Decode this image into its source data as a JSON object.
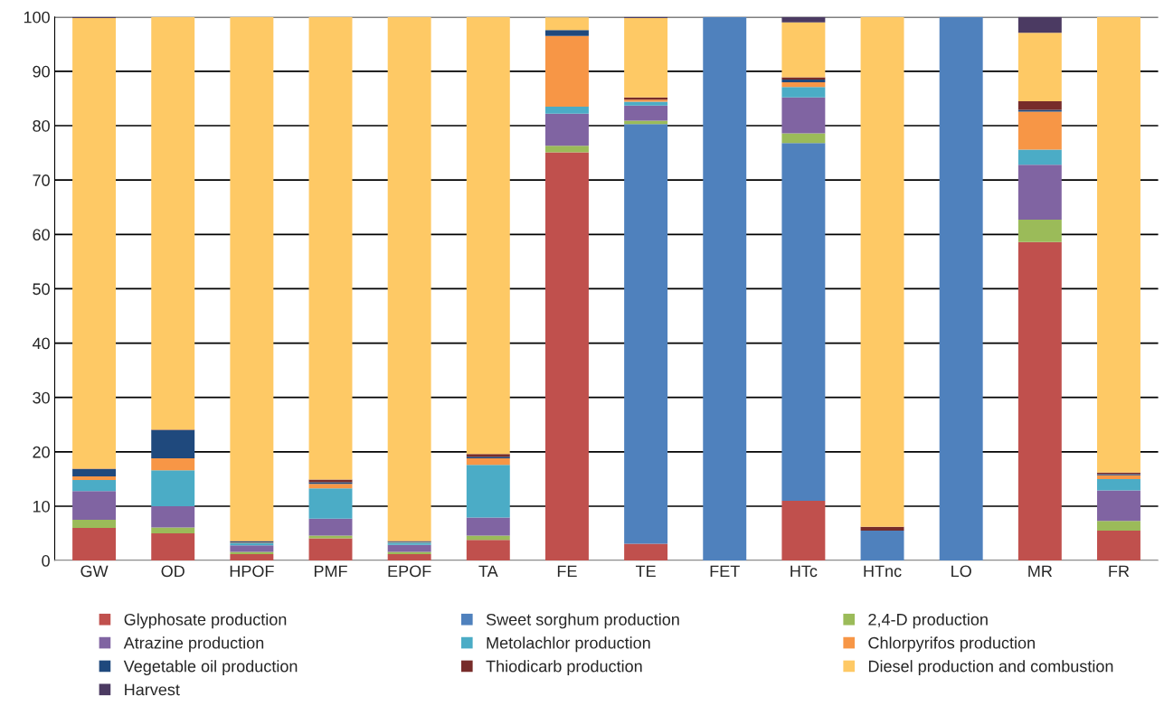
{
  "chart_data": {
    "type": "bar",
    "stacked": true,
    "categories": [
      "GW",
      "OD",
      "HPOF",
      "PMF",
      "EPOF",
      "TA",
      "FE",
      "TE",
      "FET",
      "HTc",
      "HTnc",
      "LO",
      "MR",
      "FR"
    ],
    "series": [
      {
        "name": "Glyphosate production",
        "color": "#c0504d",
        "values": [
          6,
          5,
          1.2,
          4.1,
          1.2,
          3.8,
          75.1,
          3.1,
          0,
          11,
          0,
          0,
          58.6,
          5.5
        ]
      },
      {
        "name": "Sweet sorghum production",
        "color": "#4f81bd",
        "values": [
          0,
          0,
          0,
          0,
          0,
          0,
          0,
          77.2,
          100,
          65.8,
          5.5,
          100,
          0,
          0
        ]
      },
      {
        "name": "2,4-D production",
        "color": "#9bbb59",
        "values": [
          1.5,
          1.1,
          0.4,
          0.5,
          0.4,
          0.8,
          1.2,
          0.6,
          0,
          1.8,
          0,
          0,
          4.1,
          1.8
        ]
      },
      {
        "name": "Atrazine production",
        "color": "#8064a2",
        "values": [
          5.3,
          3.9,
          1.2,
          3.1,
          1.3,
          3.3,
          5.9,
          2.8,
          0,
          6.6,
          0,
          0,
          10.1,
          5.6
        ]
      },
      {
        "name": "Metolachlor production",
        "color": "#4bacc6",
        "values": [
          2,
          6.6,
          0.4,
          5.6,
          0.4,
          9.7,
          1.3,
          0.7,
          0,
          1.9,
          0,
          0,
          2.8,
          2.1
        ]
      },
      {
        "name": "Chlorpyrifos production",
        "color": "#f79646",
        "values": [
          0.7,
          2.2,
          0.1,
          0.8,
          0.1,
          1.2,
          13,
          0.4,
          0,
          0.9,
          0,
          0,
          7,
          0.7
        ]
      },
      {
        "name": "Vegetable oil production",
        "color": "#1f497d",
        "values": [
          1.3,
          5.2,
          0.2,
          0.3,
          0.1,
          0.3,
          1.1,
          0,
          0,
          0.5,
          0,
          0,
          0.3,
          0.2
        ]
      },
      {
        "name": "Thiodicarb production",
        "color": "#772c2a",
        "values": [
          0.1,
          0.1,
          0.1,
          0.5,
          0.1,
          0.5,
          null,
          0.4,
          0,
          0.4,
          0.7,
          0,
          1.6,
          0.3
        ]
      },
      {
        "name": "Diesel production and combustion",
        "color": "#fec965",
        "values": [
          82.9,
          75.9,
          96.4,
          85.1,
          96.4,
          80.4,
          2.3,
          14.6,
          0,
          10.1,
          93.8,
          0,
          12.6,
          83.8
        ]
      },
      {
        "name": "Harvest",
        "color": "#4b3a62",
        "values": [
          0.2,
          0,
          0,
          0,
          0,
          0,
          0,
          0.2,
          0,
          1,
          0,
          0,
          2.9,
          0
        ]
      }
    ],
    "ylim": [
      0,
      100
    ],
    "yticks": [
      0,
      10,
      20,
      30,
      40,
      50,
      60,
      70,
      80,
      90,
      100
    ],
    "grid": "y",
    "legend": "bottom"
  }
}
